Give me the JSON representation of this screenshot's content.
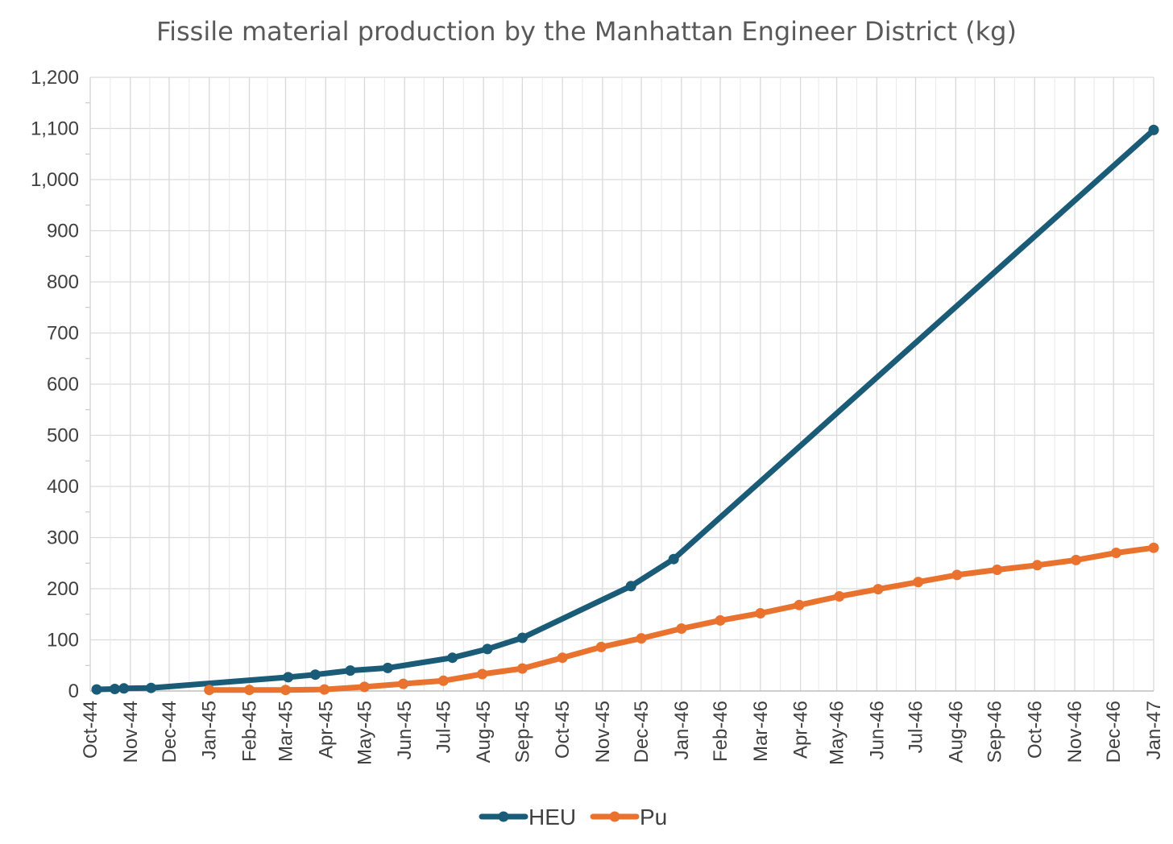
{
  "chart_data": {
    "type": "line",
    "title": "Fissile material production by the Manhattan Engineer District (kg)",
    "xlabel": "",
    "ylabel": "",
    "ylim": [
      0,
      1200
    ],
    "ytick_step": 100,
    "yticks": [
      "0",
      "100",
      "200",
      "300",
      "400",
      "500",
      "600",
      "700",
      "800",
      "900",
      "1,000",
      "1,100",
      "1,200"
    ],
    "xlim_days": [
      0,
      822
    ],
    "xtick_days": [
      0,
      31,
      61,
      92,
      123,
      151,
      182,
      212,
      243,
      273,
      304,
      334,
      365,
      396,
      426,
      457,
      487,
      518,
      549,
      577,
      608,
      638,
      669,
      699,
      730,
      761,
      791,
      822
    ],
    "xticks": [
      "Oct-44",
      "Nov-44",
      "Dec-44",
      "Jan-45",
      "Feb-45",
      "Mar-45",
      "Apr-45",
      "May-45",
      "Jun-45",
      "Jul-45",
      "Aug-45",
      "Sep-45",
      "Oct-45",
      "Nov-45",
      "Dec-45",
      "Jan-46",
      "Feb-46",
      "Mar-46",
      "Apr-46",
      "May-46",
      "Jun-46",
      "Jul-46",
      "Aug-46",
      "Sep-46",
      "Oct-46",
      "Nov-46",
      "Dec-46",
      "Jan-47"
    ],
    "grid": true,
    "legend_position": "bottom",
    "series": [
      {
        "name": "HEU",
        "color": "#1a5b78",
        "x_days": [
          5,
          19,
          26,
          47,
          153,
          174,
          201,
          230,
          280,
          307,
          334,
          418,
          451,
          822
        ],
        "values": [
          3,
          4,
          5,
          6,
          27,
          32,
          40,
          45,
          65,
          82,
          104,
          205,
          258,
          1097
        ]
      },
      {
        "name": "Pu",
        "color": "#e9722e",
        "x_days": [
          92,
          123,
          151,
          181,
          212,
          242,
          273,
          303,
          334,
          365,
          395,
          426,
          457,
          487,
          518,
          548,
          579,
          609,
          640,
          670,
          701,
          732,
          762,
          793,
          822
        ],
        "values": [
          2,
          2,
          2,
          3,
          8,
          14,
          20,
          33,
          44,
          65,
          86,
          103,
          122,
          138,
          152,
          168,
          185,
          199,
          213,
          227,
          237,
          246,
          256,
          270,
          280
        ]
      }
    ]
  }
}
